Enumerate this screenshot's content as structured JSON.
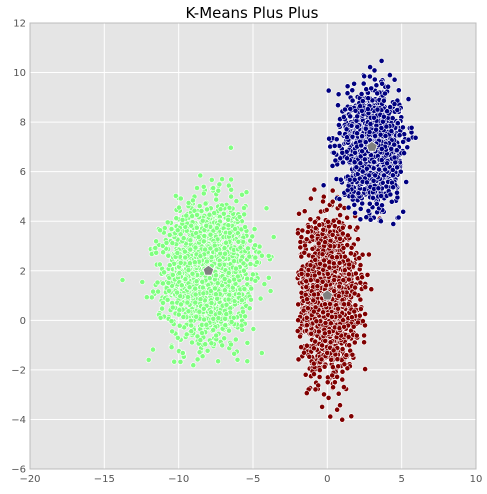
{
  "chart_data": {
    "type": "scatter",
    "title": "K-Means Plus Plus",
    "xlabel": "",
    "ylabel": "",
    "xlim": [
      -20,
      10
    ],
    "ylim": [
      -6,
      12
    ],
    "xticks": [
      -20,
      -15,
      -10,
      -5,
      0,
      5,
      10
    ],
    "yticks": [
      -6,
      -4,
      -2,
      0,
      2,
      4,
      6,
      8,
      10,
      12
    ],
    "grid": true,
    "legend": "none",
    "background_color": "#e5e5e5",
    "grid_color": "#ffffff",
    "series": [
      {
        "color": "#80ff80",
        "center": [
          -8,
          2
        ],
        "spread": [
          1.9,
          1.8
        ],
        "rotation_deg": 10,
        "point_count": 1800,
        "x_range": [
          -15,
          -3
        ],
        "y_range": [
          -3.2,
          8.8
        ]
      },
      {
        "color": "#800000",
        "center": [
          0,
          1
        ],
        "spread": [
          1.3,
          1.9
        ],
        "rotation_deg": 0,
        "point_count": 1800,
        "x_range": [
          -2,
          4
        ],
        "y_range": [
          -4.6,
          5.4
        ]
      },
      {
        "color": "#000080",
        "center": [
          3,
          7
        ],
        "spread": [
          1.2,
          1.4
        ],
        "rotation_deg": 0,
        "point_count": 1700,
        "x_range": [
          -0.5,
          7
        ],
        "y_range": [
          3.5,
          10.7
        ]
      }
    ],
    "centroids": {
      "color": "#808080",
      "points": [
        [
          -8,
          2
        ],
        [
          0,
          1
        ],
        [
          3,
          7
        ]
      ]
    }
  }
}
